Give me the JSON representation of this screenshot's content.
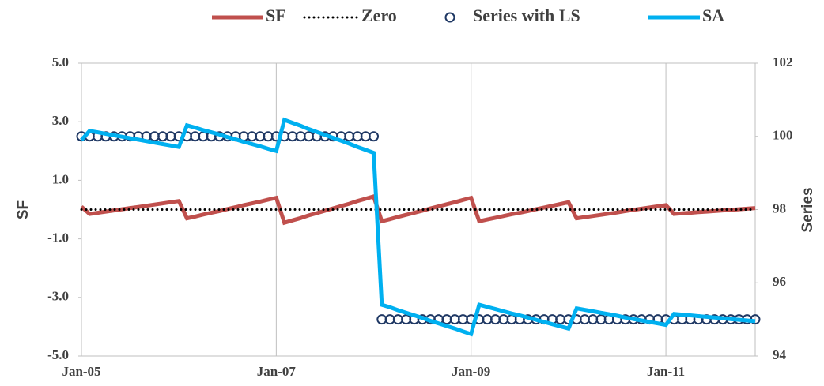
{
  "chart_data": {
    "type": "line",
    "categories": [
      "Jan-05",
      null,
      null,
      null,
      null,
      null,
      null,
      null,
      null,
      null,
      null,
      null,
      null,
      null,
      null,
      null,
      null,
      null,
      null,
      null,
      null,
      null,
      null,
      null,
      "Jan-07",
      null,
      null,
      null,
      null,
      null,
      null,
      null,
      null,
      null,
      null,
      null,
      null,
      null,
      null,
      null,
      null,
      null,
      null,
      null,
      null,
      null,
      null,
      null,
      "Jan-09",
      null,
      null,
      null,
      null,
      null,
      null,
      null,
      null,
      null,
      null,
      null,
      null,
      null,
      null,
      null,
      null,
      null,
      null,
      null,
      null,
      null,
      null,
      null,
      "Jan-11",
      null,
      null,
      null,
      null,
      null,
      null,
      null,
      null,
      null,
      null,
      null
    ],
    "series": [
      {
        "name": "SF",
        "color": "#c0504d",
        "style": "solid",
        "axis": "y",
        "values": [
          0.1,
          -0.15,
          -0.11,
          -0.07,
          -0.03,
          0.01,
          0.05,
          0.09,
          0.13,
          0.17,
          0.21,
          0.25,
          0.29,
          -0.3,
          -0.24,
          -0.17,
          -0.11,
          -0.05,
          0.02,
          0.08,
          0.15,
          0.21,
          0.27,
          0.34,
          0.4,
          -0.45,
          -0.37,
          -0.29,
          -0.2,
          -0.12,
          -0.04,
          0.04,
          0.12,
          0.2,
          0.29,
          0.37,
          0.45,
          -0.4,
          -0.33,
          -0.25,
          -0.18,
          -0.11,
          -0.04,
          0.04,
          0.11,
          0.18,
          0.25,
          0.33,
          0.4,
          -0.4,
          -0.34,
          -0.28,
          -0.22,
          -0.16,
          -0.11,
          -0.05,
          0.01,
          0.07,
          0.13,
          0.19,
          0.25,
          -0.3,
          -0.26,
          -0.22,
          -0.18,
          -0.14,
          -0.1,
          -0.05,
          -0.01,
          0.03,
          0.07,
          0.11,
          0.15,
          -0.15,
          -0.13,
          -0.11,
          -0.09,
          -0.07,
          -0.05,
          -0.03,
          -0.01,
          0.01,
          0.03,
          0.05
        ]
      },
      {
        "name": "Zero",
        "color": "#000000",
        "style": "dotted",
        "axis": "y",
        "values": [
          0,
          0,
          0,
          0,
          0,
          0,
          0,
          0,
          0,
          0,
          0,
          0,
          0,
          0,
          0,
          0,
          0,
          0,
          0,
          0,
          0,
          0,
          0,
          0,
          0,
          0,
          0,
          0,
          0,
          0,
          0,
          0,
          0,
          0,
          0,
          0,
          0,
          0,
          0,
          0,
          0,
          0,
          0,
          0,
          0,
          0,
          0,
          0,
          0,
          0,
          0,
          0,
          0,
          0,
          0,
          0,
          0,
          0,
          0,
          0,
          0,
          0,
          0,
          0,
          0,
          0,
          0,
          0,
          0,
          0,
          0,
          0,
          0,
          0,
          0,
          0,
          0,
          0,
          0,
          0,
          0,
          0,
          0,
          0
        ]
      },
      {
        "name": "Series with LS",
        "color": "#1f3864",
        "style": "markers",
        "axis": "y2",
        "values": [
          100,
          100,
          100,
          100,
          100,
          100,
          100,
          100,
          100,
          100,
          100,
          100,
          100,
          100,
          100,
          100,
          100,
          100,
          100,
          100,
          100,
          100,
          100,
          100,
          100,
          100,
          100,
          100,
          100,
          100,
          100,
          100,
          100,
          100,
          100,
          100,
          100,
          95,
          95,
          95,
          95,
          95,
          95,
          95,
          95,
          95,
          95,
          95,
          95,
          95,
          95,
          95,
          95,
          95,
          95,
          95,
          95,
          95,
          95,
          95,
          95,
          95,
          95,
          95,
          95,
          95,
          95,
          95,
          95,
          95,
          95,
          95,
          95,
          95,
          95,
          95,
          95,
          95,
          95,
          95,
          95,
          95,
          95,
          95
        ]
      },
      {
        "name": "SA",
        "color": "#00b0f0",
        "style": "solid",
        "axis": "y2",
        "values": [
          99.9,
          100.15,
          100.11,
          100.07,
          100.03,
          99.99,
          99.95,
          99.91,
          99.87,
          99.83,
          99.79,
          99.75,
          99.71,
          100.3,
          100.24,
          100.17,
          100.11,
          100.05,
          99.98,
          99.92,
          99.85,
          99.79,
          99.73,
          99.66,
          99.6,
          100.45,
          100.37,
          100.29,
          100.2,
          100.12,
          100.04,
          99.96,
          99.88,
          99.8,
          99.71,
          99.63,
          99.55,
          95.4,
          95.33,
          95.25,
          95.18,
          95.11,
          95.04,
          94.96,
          94.89,
          94.82,
          94.75,
          94.67,
          94.6,
          95.4,
          95.34,
          95.28,
          95.22,
          95.16,
          95.11,
          95.05,
          94.99,
          94.93,
          94.87,
          94.81,
          94.75,
          95.3,
          95.26,
          95.22,
          95.18,
          95.14,
          95.1,
          95.05,
          95.01,
          94.97,
          94.93,
          94.89,
          94.85,
          95.15,
          95.13,
          95.11,
          95.09,
          95.07,
          95.05,
          95.03,
          95.01,
          94.99,
          94.97,
          94.95
        ]
      }
    ],
    "y_label": "SF",
    "y2_label": "Series",
    "ylim": [
      -5,
      5
    ],
    "yticks": [
      {
        "value": -5,
        "label": "-5.0"
      },
      {
        "value": -3,
        "label": "-3.0"
      },
      {
        "value": -1,
        "label": "-1.0"
      },
      {
        "value": 1,
        "label": "1.0"
      },
      {
        "value": 3,
        "label": "3.0"
      },
      {
        "value": 5,
        "label": "5.0"
      }
    ],
    "y2lim": [
      94,
      102
    ],
    "y2ticks": [
      94,
      96,
      98,
      100,
      102
    ],
    "grid": "x",
    "legend": "top"
  }
}
